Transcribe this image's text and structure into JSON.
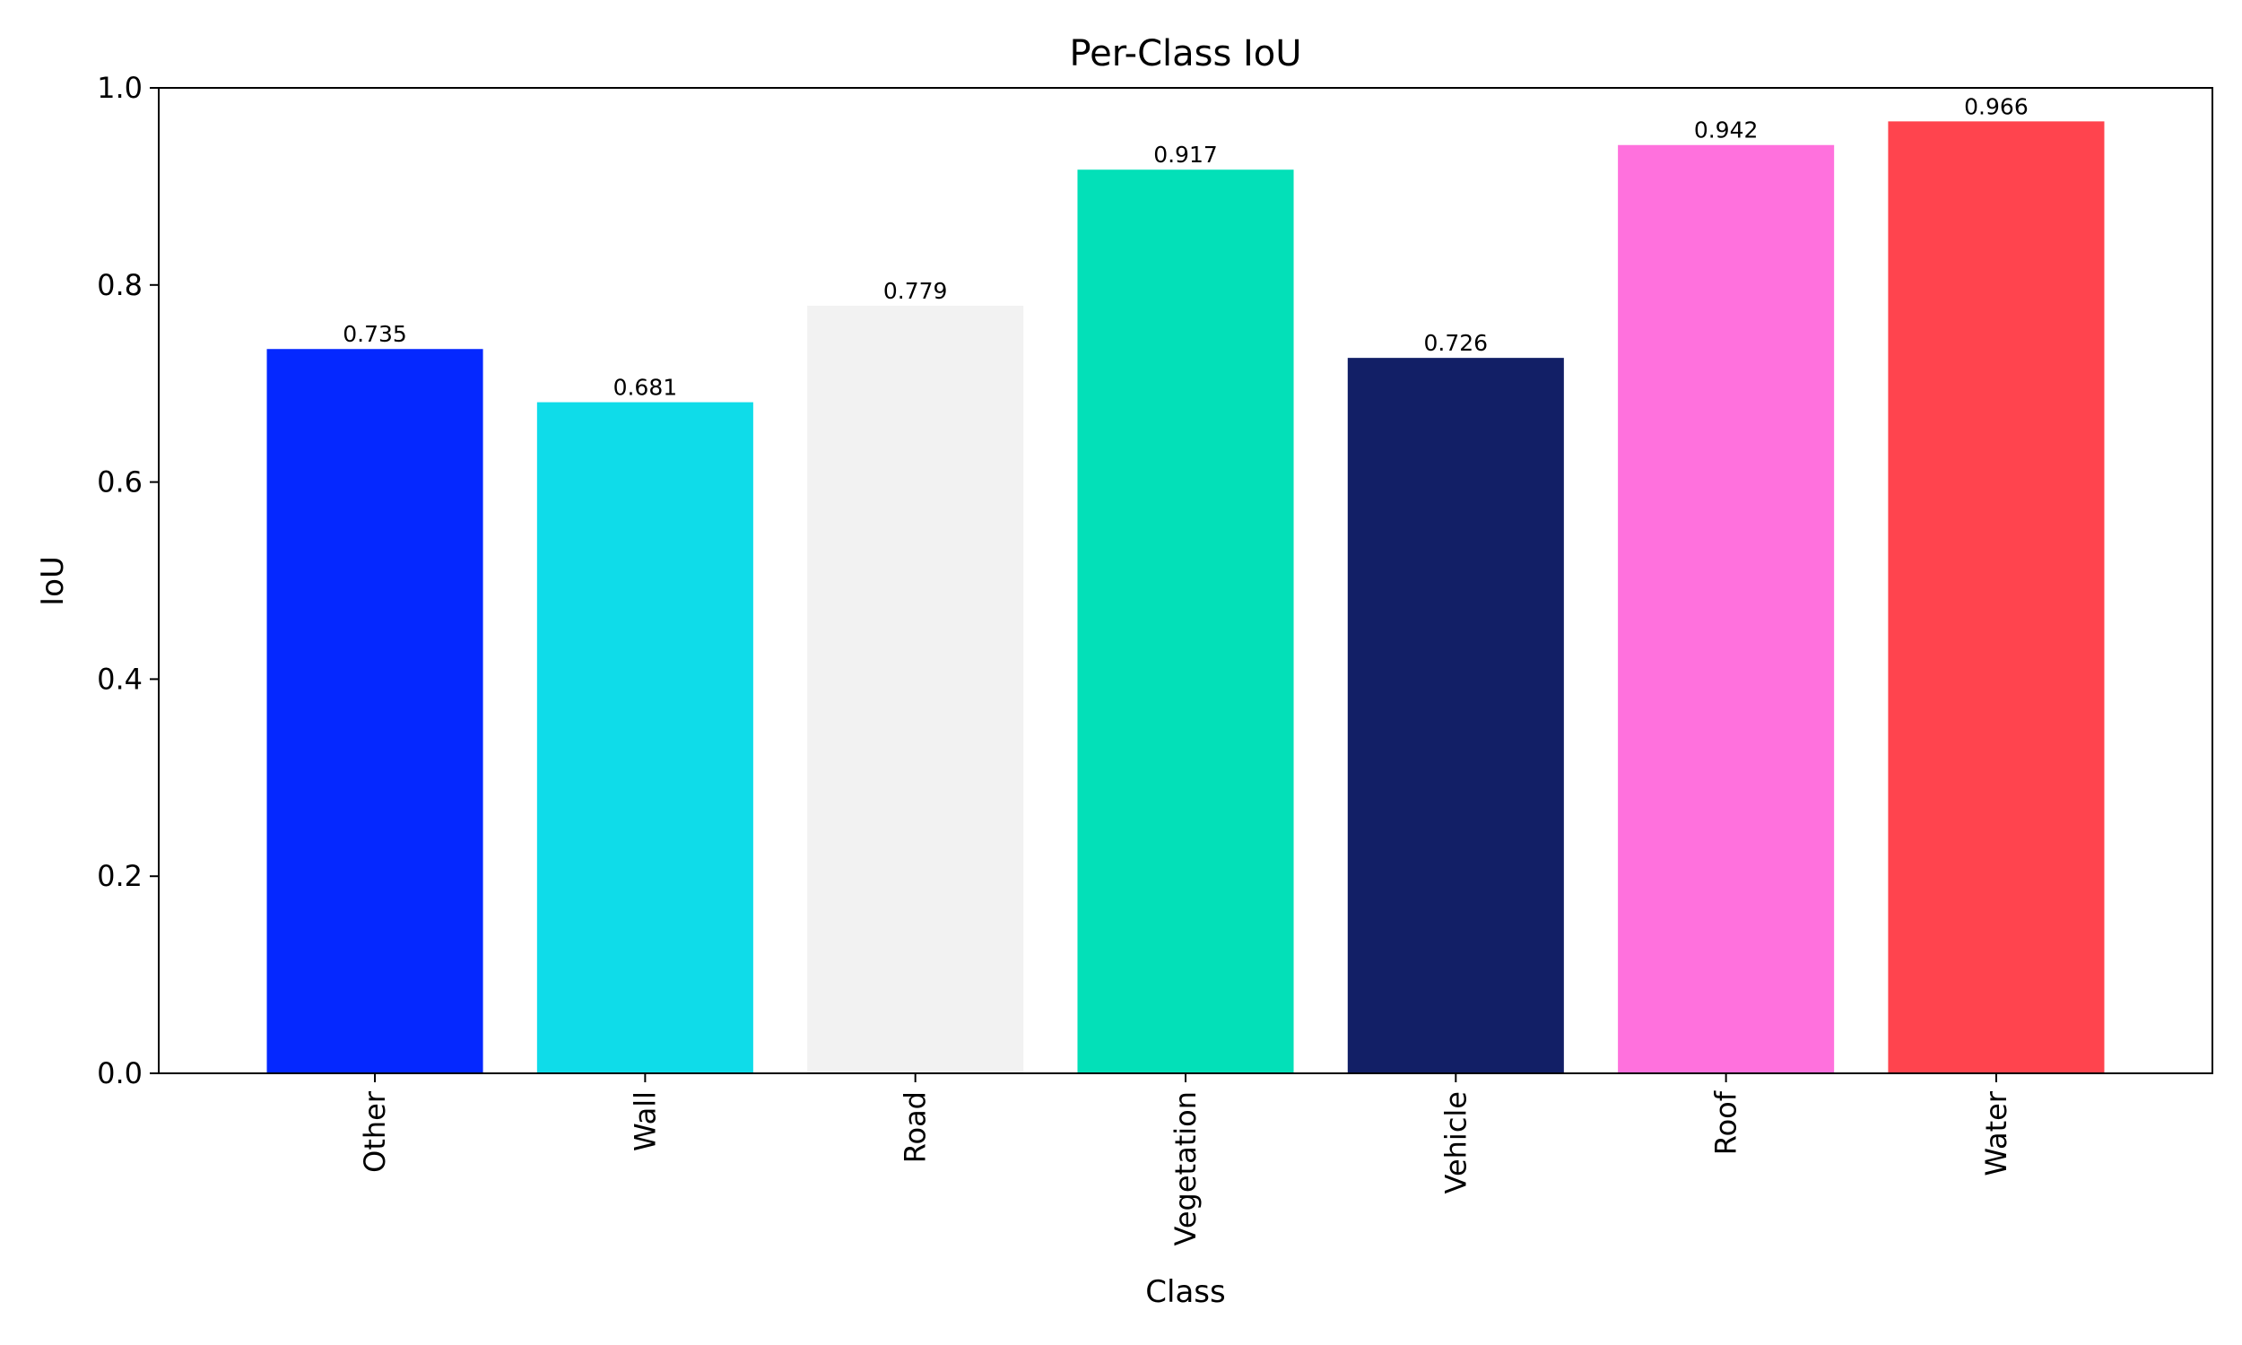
{
  "chart_data": {
    "type": "bar",
    "title": "Per-Class IoU",
    "xlabel": "Class",
    "ylabel": "IoU",
    "ylim": [
      0,
      1.0
    ],
    "yticks": [
      "0.0",
      "0.2",
      "0.4",
      "0.6",
      "0.8",
      "1.0"
    ],
    "categories": [
      "Other",
      "Wall",
      "Road",
      "Vegetation",
      "Vehicle",
      "Roof",
      "Water"
    ],
    "values": [
      0.735,
      0.681,
      0.779,
      0.917,
      0.726,
      0.942,
      0.966
    ],
    "value_labels": [
      "0.735",
      "0.681",
      "0.779",
      "0.917",
      "0.726",
      "0.942",
      "0.966"
    ],
    "colors": [
      "#0528ff",
      "#0fdce9",
      "#f2f2f2",
      "#03e0b8",
      "#121f66",
      "#ff71dd",
      "#ff444e"
    ],
    "grid": false,
    "legend": "none",
    "x_tick_rotation": "vertical"
  }
}
